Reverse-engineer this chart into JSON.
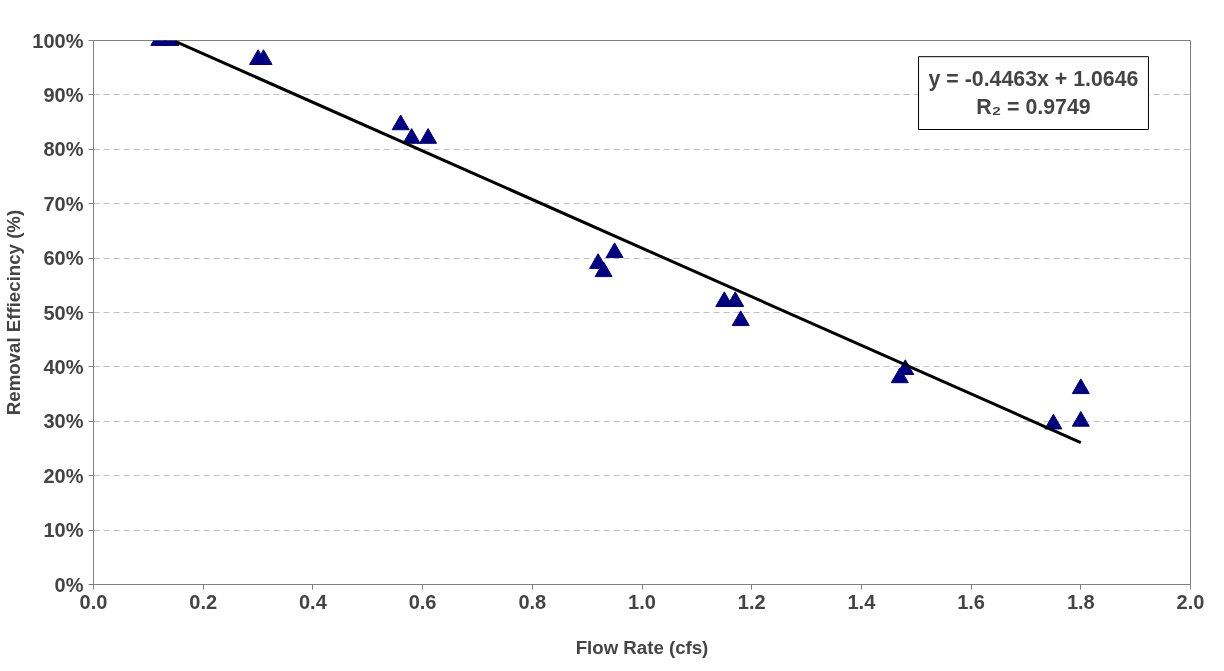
{
  "chart_data": {
    "type": "scatter",
    "xlabel": "Flow Rate (cfs)",
    "ylabel": "Removal Effiecincy (%)",
    "xlim": [
      0,
      2.0
    ],
    "xticks": [
      {
        "value": 0,
        "label": "0.0"
      },
      {
        "value": 0.2,
        "label": "0.2"
      },
      {
        "value": 0.4,
        "label": "0.4"
      },
      {
        "value": 0.6,
        "label": "0.6"
      },
      {
        "value": 0.8,
        "label": "0.8"
      },
      {
        "value": 1.0,
        "label": "1.0"
      },
      {
        "value": 1.2,
        "label": "1.2"
      },
      {
        "value": 1.4,
        "label": "1.4"
      },
      {
        "value": 1.6,
        "label": "1.6"
      },
      {
        "value": 1.8,
        "label": "1.8"
      },
      {
        "value": 2.0,
        "label": "2.0"
      }
    ],
    "ylim": [
      0,
      100
    ],
    "yticks": [
      {
        "value": 0,
        "label": "0%"
      },
      {
        "value": 10,
        "label": "10%"
      },
      {
        "value": 20,
        "label": "20%"
      },
      {
        "value": 30,
        "label": "30%"
      },
      {
        "value": 40,
        "label": "40%"
      },
      {
        "value": 50,
        "label": "50%"
      },
      {
        "value": 60,
        "label": "60%"
      },
      {
        "value": 70,
        "label": "70%"
      },
      {
        "value": 80,
        "label": "80%"
      },
      {
        "value": 90,
        "label": "90%"
      },
      {
        "value": 100,
        "label": "100%"
      }
    ],
    "grid": "y",
    "marker": "triangle",
    "series": [
      {
        "color": "#000080",
        "x": [
          0.12,
          0.14,
          0.3,
          0.31,
          0.56,
          0.58,
          0.61,
          0.92,
          0.93,
          0.95,
          1.15,
          1.17,
          1.18,
          1.47,
          1.48,
          1.75,
          1.8,
          1.8
        ],
        "values": [
          100,
          100,
          96.5,
          96.5,
          84.5,
          82,
          82,
          59,
          57.5,
          61,
          52,
          52,
          48.5,
          38,
          39.5,
          29.5,
          30,
          36
        ]
      },
      {
        "type": "line",
        "marker": "none",
        "color": "#000000",
        "x": [
          0.15,
          1.8
        ],
        "values": [
          99.8,
          26.1
        ]
      }
    ],
    "annotations": [
      "y = -0.4463x + 1.0646\nR₂ = 0.9749"
    ]
  }
}
